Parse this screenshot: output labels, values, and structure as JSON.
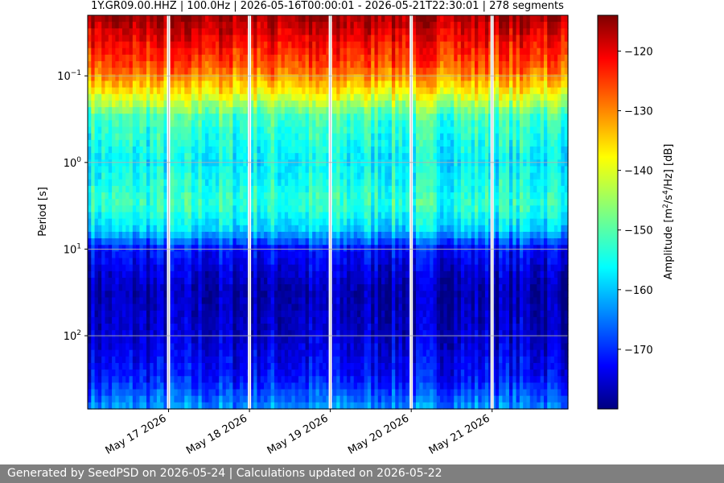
{
  "chart_data": {
    "type": "heatmap",
    "title": "1Y.GR09.00.HHZ | 100.0Hz | 2026-05-16T00:00:01 - 2026-05-21T22:30:01 | 278 segments",
    "xlabel": "",
    "ylabel": "Period [s]",
    "y_scale": "log",
    "y_inverted": true,
    "y_range": [
      0.02,
      700
    ],
    "y_ticks": [
      {
        "value": 0.1,
        "base": "10",
        "exp": "−1"
      },
      {
        "value": 1,
        "base": "10",
        "exp": "0"
      },
      {
        "value": 10,
        "base": "10",
        "exp": "1"
      },
      {
        "value": 100,
        "base": "10",
        "exp": "2"
      }
    ],
    "x_range": [
      "2026-05-16T00:00:01",
      "2026-05-21T22:30:01"
    ],
    "x_ticks": [
      {
        "value": "2026-05-17",
        "label": "May 17 2026"
      },
      {
        "value": "2026-05-18",
        "label": "May 18 2026"
      },
      {
        "value": "2026-05-19",
        "label": "May 19 2026"
      },
      {
        "value": "2026-05-20",
        "label": "May 20 2026"
      },
      {
        "value": "2026-05-21",
        "label": "May 21 2026"
      }
    ],
    "data_gaps": [
      "2026-05-17T00:00",
      "2026-05-18T00:00",
      "2026-05-19T00:00",
      "2026-05-20T00:00",
      "2026-05-21T00:00"
    ],
    "grid": true,
    "colormap": "jet",
    "colorbar": {
      "label": "Amplitude [m²/s⁴/Hz] [dB]",
      "range": [
        -180,
        -114
      ],
      "ticks": [
        -120,
        -130,
        -140,
        -150,
        -160,
        -170
      ]
    },
    "period_profile_db": [
      {
        "period": 0.02,
        "db": -116
      },
      {
        "period": 0.04,
        "db": -122
      },
      {
        "period": 0.08,
        "db": -128
      },
      {
        "period": 0.15,
        "db": -138
      },
      {
        "period": 0.3,
        "db": -151
      },
      {
        "period": 1,
        "db": -156
      },
      {
        "period": 3,
        "db": -152
      },
      {
        "period": 6,
        "db": -158
      },
      {
        "period": 10,
        "db": -171
      },
      {
        "period": 30,
        "db": -177
      },
      {
        "period": 100,
        "db": -175
      },
      {
        "period": 300,
        "db": -171
      },
      {
        "period": 700,
        "db": -162
      }
    ]
  },
  "footer": {
    "text": "Generated by SeedPSD on 2026-05-24 | Calculations updated on 2026-05-22"
  }
}
